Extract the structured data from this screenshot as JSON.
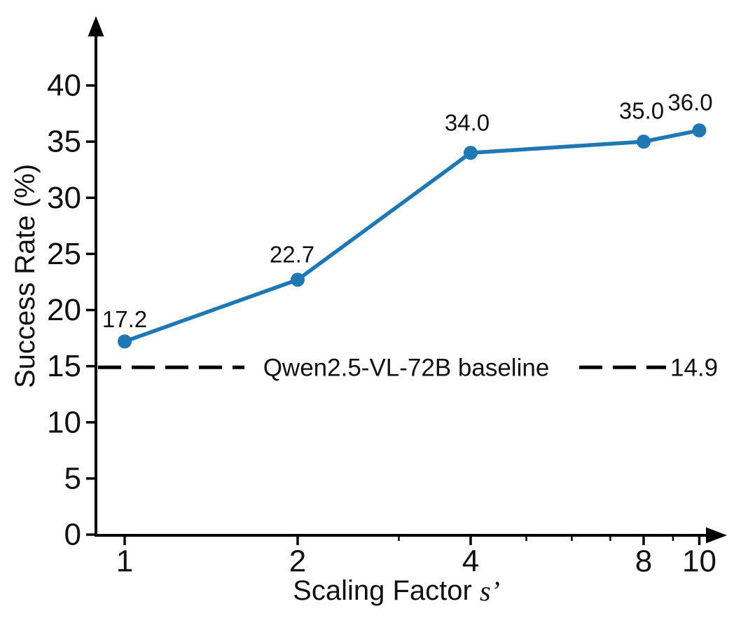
{
  "chart_data": {
    "type": "line",
    "title": "",
    "ylabel": "Success Rate (%)",
    "xlabel": "Scaling Factor s’",
    "xlabel_parts": {
      "prefix": "Scaling Factor ",
      "variable": "s",
      "prime": "’"
    },
    "x": [
      1,
      2,
      4,
      8,
      10
    ],
    "series": [
      {
        "name": "success rate",
        "values": [
          17.2,
          22.7,
          34.0,
          35.0,
          36.0
        ],
        "color": "#1f77b4"
      }
    ],
    "point_labels": [
      "17.2",
      "22.7",
      "34.0",
      "35.0",
      "36.0"
    ],
    "x_axis": {
      "scale": "log",
      "range": [
        1,
        11.5
      ],
      "ticks": [
        {
          "value": 1,
          "label": "1"
        },
        {
          "value": 2,
          "label": "2"
        },
        {
          "value": 4,
          "label": "4"
        },
        {
          "value": 8,
          "label": "8"
        },
        {
          "value": 10,
          "label": "10"
        }
      ],
      "minor_ticks": [
        3,
        5,
        6,
        7,
        9
      ]
    },
    "y_axis": {
      "scale": "linear",
      "range": [
        0,
        46
      ],
      "ticks": [
        {
          "value": 0,
          "label": "0"
        },
        {
          "value": 5,
          "label": "5"
        },
        {
          "value": 10,
          "label": "10"
        },
        {
          "value": 15,
          "label": "15"
        },
        {
          "value": 20,
          "label": "20"
        },
        {
          "value": 25,
          "label": "25"
        },
        {
          "value": 30,
          "label": "30"
        },
        {
          "value": 35,
          "label": "35"
        },
        {
          "value": 40,
          "label": "40"
        }
      ]
    },
    "baseline": {
      "value": 14.9,
      "label": "Qwen2.5-VL-72B baseline",
      "value_label": "14.9",
      "style": "dashed",
      "color": "#000000"
    },
    "grid": false,
    "legend": "none"
  },
  "colors": {
    "line": "#1f77b4",
    "axis": "#000000",
    "text": "#111111",
    "background": "#ffffff"
  }
}
